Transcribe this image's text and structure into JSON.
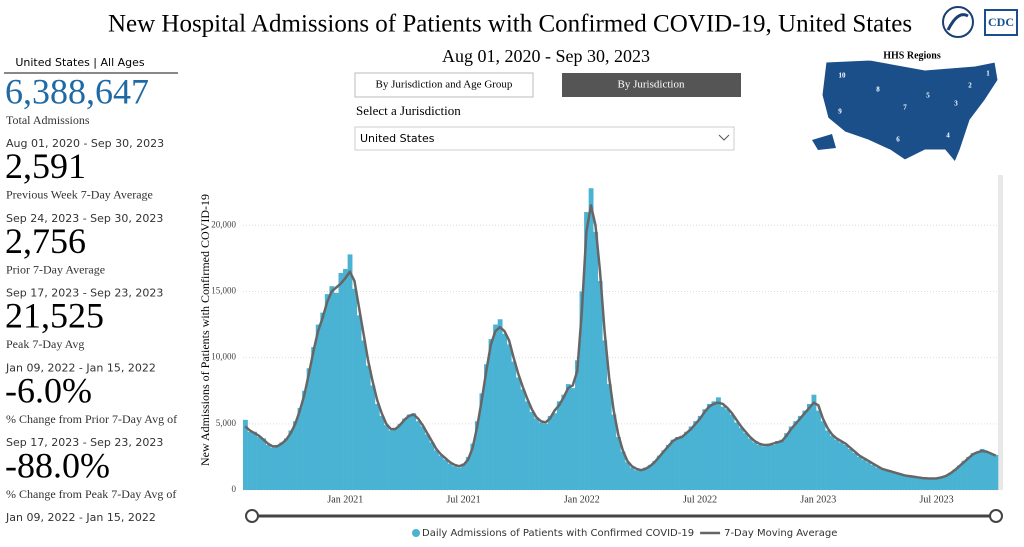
{
  "header": {
    "title": "New Hospital Admissions of Patients with Confirmed COVID-19, United States",
    "date_range": "Aug 01, 2020 - Sep 30, 2023",
    "logo": "CDC"
  },
  "controls": {
    "tabs": [
      "By Jurisdiction and Age Group",
      "By Jurisdiction"
    ],
    "select_label": "Select a Jurisdiction",
    "select_value": "United States"
  },
  "map": {
    "title": "HHS Regions",
    "regions": [
      "1",
      "2",
      "3",
      "4",
      "5",
      "6",
      "7",
      "8",
      "9",
      "10"
    ]
  },
  "left_panel": {
    "header": "United States | All Ages",
    "stats": [
      {
        "value": "6,388,647",
        "label": "Total Admissions",
        "period": "Aug 01, 2020 - Sep 30, 2023"
      },
      {
        "value": "2,591",
        "label": "Previous Week 7-Day Average",
        "period": "Sep 24, 2023 - Sep 30, 2023"
      },
      {
        "value": "2,756",
        "label": "Prior 7-Day Average",
        "period": "Sep 17, 2023 - Sep 23, 2023"
      },
      {
        "value": "21,525",
        "label": "Peak 7-Day Avg",
        "period": "Jan 09, 2022 - Jan 15, 2022"
      },
      {
        "value": "-6.0%",
        "label": "% Change from Prior 7-Day Avg of",
        "period": "Sep 17, 2023 - Sep 23, 2023"
      },
      {
        "value": "-88.0%",
        "label": "% Change from Peak 7-Day Avg of",
        "period": "Jan 09, 2022 - Jan 15, 2022"
      }
    ]
  },
  "chart_data": {
    "type": "bar",
    "y_label": "New Admissions of Patients with Confirmed COVID-19",
    "categories": [
      null,
      null,
      null,
      null,
      null,
      null,
      null,
      null,
      null,
      null,
      null,
      null,
      null,
      null,
      null,
      null,
      null,
      null,
      null,
      null,
      null,
      null,
      "Jan 2021",
      null,
      null,
      null,
      null,
      null,
      null,
      null,
      null,
      null,
      null,
      null,
      null,
      null,
      null,
      null,
      null,
      null,
      null,
      null,
      null,
      null,
      null,
      null,
      null,
      null,
      "Jul 2021",
      null,
      null,
      null,
      null,
      null,
      null,
      null,
      null,
      null,
      null,
      null,
      null,
      null,
      null,
      null,
      null,
      null,
      null,
      null,
      null,
      null,
      null,
      null,
      null,
      null,
      "Jan 2022",
      null,
      null,
      null,
      null,
      null,
      null,
      null,
      null,
      null,
      null,
      null,
      null,
      null,
      null,
      null,
      null,
      null,
      null,
      null,
      null,
      null,
      null,
      null,
      null,
      null,
      "Jul 2022",
      null,
      null,
      null,
      null,
      null,
      null,
      null,
      null,
      null,
      null,
      null,
      null,
      null,
      null,
      null,
      null,
      null,
      null,
      null,
      null,
      null,
      null,
      null,
      null,
      null,
      "Jan 2023",
      null,
      null,
      null,
      null,
      null,
      null,
      null,
      null,
      null,
      null,
      null,
      null,
      null,
      null,
      null,
      null,
      null,
      null,
      null,
      null,
      null,
      null,
      null,
      null,
      null,
      "Jul 2023",
      null,
      null,
      null,
      null,
      null,
      null,
      null,
      null,
      null,
      null,
      null,
      null,
      null
    ],
    "series": [
      {
        "name": "Daily Admissions of Patients with Confirmed COVID-19",
        "type": "bar",
        "color": "#4ab3d4",
        "values": [
          5300,
          4400,
          4400,
          4000,
          3900,
          3400,
          3200,
          3400,
          3600,
          3900,
          4500,
          5200,
          6200,
          7500,
          9200,
          10800,
          12500,
          13400,
          14800,
          15400,
          14900,
          16400,
          16700,
          17800,
          15200,
          13200,
          11300,
          9400,
          7900,
          6500,
          5600,
          4900,
          4500,
          4700,
          5000,
          5400,
          5700,
          5800,
          5200,
          4800,
          4200,
          3600,
          3000,
          2600,
          2300,
          2000,
          1800,
          1700,
          2000,
          2500,
          3500,
          5200,
          7300,
          9500,
          11400,
          12500,
          12900,
          11800,
          11000,
          9700,
          8500,
          7600,
          6700,
          5900,
          5400,
          5100,
          5000,
          5600,
          5800,
          6700,
          7200,
          8000,
          7700,
          9800,
          15000,
          21000,
          22800,
          19500,
          15800,
          11300,
          8000,
          5700,
          4000,
          2900,
          2100,
          1700,
          1500,
          1500,
          1700,
          1900,
          2200,
          2600,
          3000,
          3400,
          3800,
          4000,
          4100,
          4400,
          4800,
          5200,
          5600,
          6100,
          6500,
          6700,
          7000,
          6300,
          6100,
          5700,
          5100,
          4700,
          4300,
          3900,
          3600,
          3400,
          3300,
          3500,
          3400,
          3700,
          3800,
          4300,
          4800,
          5200,
          5600,
          6000,
          6500,
          7200,
          6000,
          5200,
          4500,
          4100,
          3800,
          3600,
          3400,
          3100,
          2800,
          2500,
          2300,
          2100,
          1900,
          1700,
          1550,
          1450,
          1350,
          1250,
          1150,
          1080,
          1020,
          980,
          930,
          890,
          870,
          860,
          900,
          980,
          1100,
          1300,
          1550,
          1850,
          2200,
          2500,
          2800,
          2900,
          3100,
          2850,
          2700,
          2650
        ]
      },
      {
        "name": "7-Day Moving Average",
        "type": "line",
        "color": "#666666",
        "values": [
          4800,
          4500,
          4300,
          4100,
          3800,
          3500,
          3300,
          3300,
          3500,
          3800,
          4300,
          5000,
          6000,
          7200,
          8800,
          10500,
          12000,
          13000,
          14200,
          15000,
          15300,
          15600,
          16000,
          16500,
          15800,
          13800,
          11800,
          9800,
          8200,
          6800,
          5800,
          5000,
          4600,
          4600,
          4900,
          5300,
          5600,
          5700,
          5400,
          4900,
          4300,
          3700,
          3100,
          2700,
          2400,
          2100,
          1900,
          1800,
          1900,
          2300,
          3200,
          4800,
          6800,
          9000,
          11000,
          12000,
          12300,
          12000,
          11300,
          10000,
          8800,
          7800,
          6900,
          6100,
          5500,
          5200,
          5100,
          5400,
          6000,
          6400,
          7000,
          7700,
          7900,
          9000,
          13500,
          19500,
          21500,
          20000,
          16500,
          12000,
          8500,
          6000,
          4200,
          3000,
          2200,
          1800,
          1600,
          1500,
          1600,
          1800,
          2100,
          2500,
          2900,
          3300,
          3700,
          3900,
          4000,
          4300,
          4600,
          5000,
          5400,
          5900,
          6300,
          6500,
          6600,
          6500,
          6200,
          5800,
          5300,
          4800,
          4400,
          4000,
          3700,
          3500,
          3400,
          3400,
          3500,
          3600,
          3700,
          4100,
          4600,
          5000,
          5400,
          5800,
          6200,
          6600,
          6400,
          5400,
          4700,
          4200,
          3900,
          3700,
          3500,
          3200,
          2900,
          2600,
          2400,
          2200,
          2000,
          1800,
          1600,
          1500,
          1400,
          1300,
          1200,
          1100,
          1050,
          1000,
          950,
          900,
          880,
          870,
          880,
          950,
          1050,
          1250,
          1500,
          1800,
          2100,
          2400,
          2700,
          2850,
          2950,
          2900,
          2750,
          2600
        ]
      }
    ],
    "ylim": [
      0,
      23800
    ],
    "yticks": [
      0,
      {
        "value": 5000,
        "label": "5,000"
      },
      {
        "value": 10000,
        "label": "10,000"
      },
      {
        "value": 15000,
        "label": "15,000"
      },
      {
        "value": 20000,
        "label": "20,000"
      }
    ],
    "grid": true
  }
}
